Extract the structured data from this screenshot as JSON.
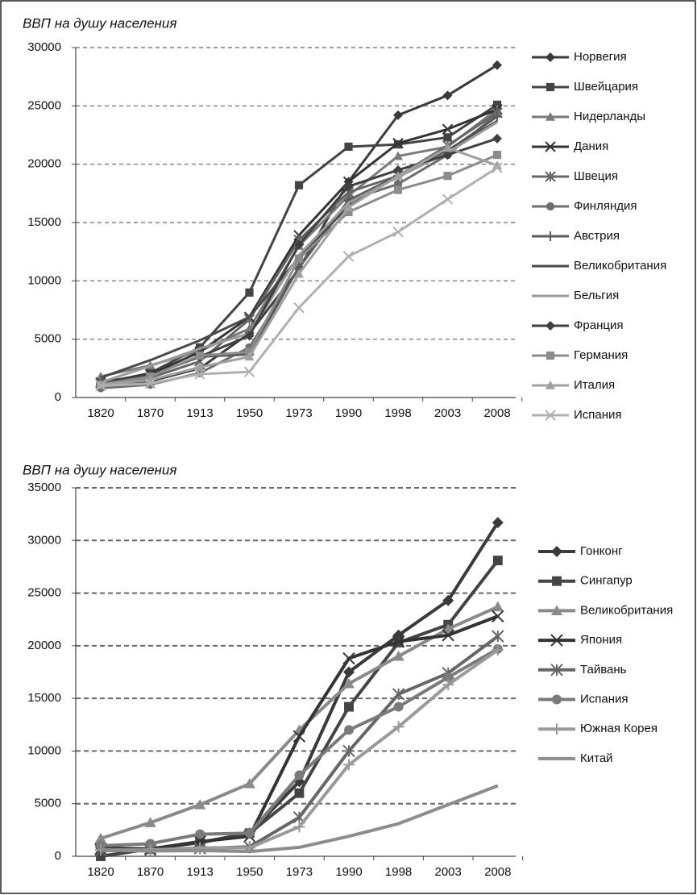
{
  "chart_data": [
    {
      "type": "line",
      "title": "ВВП на душу населения",
      "categories": [
        "1820",
        "1870",
        "1913",
        "1950",
        "1973",
        "1990",
        "1998",
        "2003",
        "2008"
      ],
      "ylim": [
        0,
        30000
      ],
      "yticks": [
        0,
        5000,
        10000,
        15000,
        20000,
        25000,
        30000
      ],
      "grid": true,
      "legend": "right",
      "series": [
        {
          "name": "Норвегия",
          "color": "#3a3a3a",
          "marker": "diamond",
          "values": [
            1100,
            1400,
            2500,
            5500,
            11000,
            18500,
            24200,
            25900,
            28500
          ]
        },
        {
          "name": "Швейцария",
          "color": "#444444",
          "marker": "square",
          "values": [
            1200,
            2100,
            4300,
            9000,
            18200,
            21500,
            21700,
            22300,
            25100
          ]
        },
        {
          "name": "Нидерланды",
          "color": "#7a7a7a",
          "marker": "triangle",
          "values": [
            1800,
            2750,
            4000,
            5900,
            13000,
            17300,
            20700,
            21500,
            24700
          ]
        },
        {
          "name": "Дания",
          "color": "#333333",
          "marker": "x",
          "values": [
            1300,
            2000,
            3900,
            6900,
            13900,
            18500,
            21800,
            23000,
            24700
          ]
        },
        {
          "name": "Швеция",
          "color": "#666666",
          "marker": "star",
          "values": [
            1200,
            1700,
            3100,
            6700,
            13500,
            17600,
            19000,
            21600,
            24400
          ]
        },
        {
          "name": "Финляндия",
          "color": "#6e6e6e",
          "marker": "circle",
          "values": [
            800,
            1100,
            2100,
            4300,
            11100,
            16900,
            18300,
            20800,
            24300
          ]
        },
        {
          "name": "Австрия",
          "color": "#5a5a5a",
          "marker": "plus",
          "values": [
            1200,
            1900,
            3500,
            3700,
            11200,
            16900,
            19000,
            21100,
            24100
          ]
        },
        {
          "name": "Великобритания",
          "color": "#4a4a4a",
          "marker": "none",
          "values": [
            1700,
            3200,
            4900,
            6900,
            12000,
            16400,
            19000,
            21200,
            23700
          ]
        },
        {
          "name": "Бельгия",
          "color": "#9a9a9a",
          "marker": "none",
          "values": [
            1300,
            2700,
            4200,
            5500,
            12200,
            16700,
            18900,
            21000,
            23600
          ]
        },
        {
          "name": "Франция",
          "color": "#404040",
          "marker": "diamond",
          "values": [
            1100,
            1900,
            3500,
            5300,
            13100,
            18100,
            19500,
            20800,
            22200
          ]
        },
        {
          "name": "Германия",
          "color": "#8c8c8c",
          "marker": "square",
          "values": [
            1100,
            1800,
            3600,
            3900,
            11900,
            15900,
            17800,
            19000,
            20800
          ]
        },
        {
          "name": "Италия",
          "color": "#a0a0a0",
          "marker": "triangle",
          "values": [
            1100,
            1500,
            2600,
            3500,
            10600,
            16300,
            19000,
            21400,
            19900
          ]
        },
        {
          "name": "Испания",
          "color": "#b0b0b0",
          "marker": "x",
          "values": [
            1000,
            1200,
            2000,
            2200,
            7700,
            12100,
            14200,
            17000,
            19700
          ]
        }
      ]
    },
    {
      "type": "line",
      "title": "ВВП на душу населения",
      "categories": [
        "1820",
        "1870",
        "1913",
        "1950",
        "1973",
        "1990",
        "1998",
        "2003",
        "2008"
      ],
      "ylim": [
        0,
        35000
      ],
      "yticks": [
        0,
        5000,
        10000,
        15000,
        20000,
        25000,
        30000,
        35000
      ],
      "grid": true,
      "legend": "right",
      "series": [
        {
          "name": "Гонконг",
          "color": "#3a3a3a",
          "marker": "diamond",
          "values": [
            800,
            700,
            1300,
            2200,
            7100,
            17500,
            21000,
            24300,
            31700
          ]
        },
        {
          "name": "Сингапур",
          "color": "#444444",
          "marker": "square",
          "values": [
            0,
            700,
            1300,
            2200,
            6000,
            14200,
            20300,
            22000,
            28100
          ]
        },
        {
          "name": "Великобритания",
          "color": "#8a8a8a",
          "marker": "triangle",
          "values": [
            1700,
            3200,
            4900,
            6900,
            12000,
            16400,
            19000,
            21600,
            23700
          ]
        },
        {
          "name": "Япония",
          "color": "#333333",
          "marker": "x",
          "values": [
            700,
            700,
            1400,
            1900,
            11400,
            18800,
            20400,
            21000,
            22800
          ]
        },
        {
          "name": "Тайвань",
          "color": "#666666",
          "marker": "star",
          "values": [
            550,
            550,
            750,
            900,
            3700,
            10000,
            15400,
            17400,
            20900
          ]
        },
        {
          "name": "Испания",
          "color": "#7a7a7a",
          "marker": "circle",
          "values": [
            1000,
            1200,
            2100,
            2200,
            7700,
            12000,
            14200,
            17000,
            19700
          ]
        },
        {
          "name": "Южная Корея",
          "color": "#9a9a9a",
          "marker": "plus",
          "values": [
            600,
            600,
            800,
            800,
            2800,
            8700,
            12300,
            16300,
            19600
          ]
        },
        {
          "name": "Китай",
          "color": "#8c8c8c",
          "marker": "none",
          "values": [
            600,
            500,
            550,
            450,
            850,
            1900,
            3100,
            4900,
            6700
          ]
        }
      ]
    }
  ]
}
